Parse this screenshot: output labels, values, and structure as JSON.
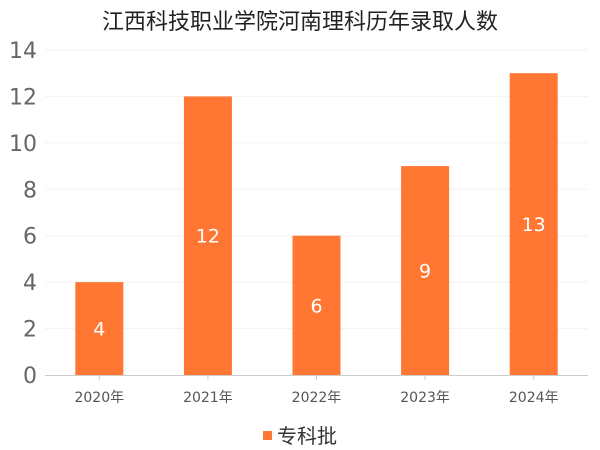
{
  "chart_data": {
    "type": "bar",
    "title": "江西科技职业学院河南理科历年录取人数",
    "categories": [
      "2020年",
      "2021年",
      "2022年",
      "2023年",
      "2024年"
    ],
    "series": [
      {
        "name": "专科批",
        "values": [
          4,
          12,
          6,
          9,
          13
        ]
      }
    ],
    "xlabel": "",
    "ylabel": "",
    "ylim": [
      0,
      14
    ],
    "yticks": [
      0,
      2,
      4,
      6,
      8,
      10,
      12,
      14
    ],
    "grid": true,
    "legend": "bottom-center",
    "data_labels": "inside-center",
    "colors": {
      "bar": "#ff7733",
      "label": "#ffffff"
    }
  }
}
